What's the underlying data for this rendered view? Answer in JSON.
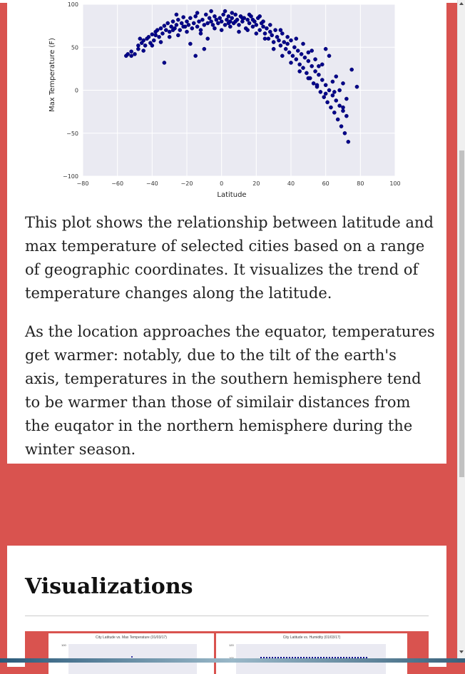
{
  "chart_data": {
    "type": "scatter",
    "xlabel": "Latitude",
    "ylabel": "Max Temperature (F)",
    "xlim": [
      -80,
      100
    ],
    "ylim": [
      -100,
      100
    ],
    "xticks": [
      -80,
      -60,
      -40,
      -20,
      0,
      20,
      40,
      60,
      80,
      100
    ],
    "yticks": [
      -100,
      -50,
      0,
      50,
      100
    ],
    "ytick_labels": [
      "−100",
      "−50",
      "0",
      "50",
      "100"
    ],
    "xtick_labels": [
      "−80",
      "−60",
      "−40",
      "−20",
      "0",
      "20",
      "40",
      "60",
      "80",
      "100"
    ],
    "grid": true,
    "marker_color": "#00008b",
    "background": "#eaeaf2",
    "series": [
      {
        "points": [
          [
            -55,
            40
          ],
          [
            -54,
            42
          ],
          [
            -52,
            45
          ],
          [
            -50,
            42
          ],
          [
            -48,
            48
          ],
          [
            -46,
            55
          ],
          [
            -45,
            58
          ],
          [
            -44,
            52
          ],
          [
            -43,
            60
          ],
          [
            -42,
            62
          ],
          [
            -41,
            55
          ],
          [
            -40,
            65
          ],
          [
            -39,
            58
          ],
          [
            -38,
            68
          ],
          [
            -37,
            70
          ],
          [
            -36,
            62
          ],
          [
            -35,
            72
          ],
          [
            -34,
            66
          ],
          [
            -33,
            75
          ],
          [
            -32,
            70
          ],
          [
            -31,
            78
          ],
          [
            -30,
            68
          ],
          [
            -29,
            74
          ],
          [
            -28,
            80
          ],
          [
            -27,
            72
          ],
          [
            -26,
            76
          ],
          [
            -25,
            82
          ],
          [
            -24,
            70
          ],
          [
            -23,
            78
          ],
          [
            -22,
            85
          ],
          [
            -21,
            74
          ],
          [
            -20,
            80
          ],
          [
            -19,
            76
          ],
          [
            -18,
            84
          ],
          [
            -17,
            72
          ],
          [
            -16,
            78
          ],
          [
            -15,
            86
          ],
          [
            -14,
            74
          ],
          [
            -13,
            80
          ],
          [
            -12,
            70
          ],
          [
            -11,
            82
          ],
          [
            -10,
            76
          ],
          [
            -9,
            88
          ],
          [
            -8,
            78
          ],
          [
            -7,
            84
          ],
          [
            -6,
            80
          ],
          [
            -5,
            76
          ],
          [
            -4,
            86
          ],
          [
            -3,
            82
          ],
          [
            -2,
            78
          ],
          [
            -1,
            84
          ],
          [
            0,
            80
          ],
          [
            1,
            88
          ],
          [
            2,
            76
          ],
          [
            3,
            82
          ],
          [
            4,
            86
          ],
          [
            5,
            80
          ],
          [
            6,
            84
          ],
          [
            7,
            78
          ],
          [
            8,
            88
          ],
          [
            9,
            82
          ],
          [
            10,
            76
          ],
          [
            11,
            86
          ],
          [
            12,
            80
          ],
          [
            13,
            84
          ],
          [
            14,
            72
          ],
          [
            15,
            82
          ],
          [
            16,
            78
          ],
          [
            17,
            86
          ],
          [
            18,
            74
          ],
          [
            19,
            80
          ],
          [
            20,
            76
          ],
          [
            21,
            84
          ],
          [
            22,
            70
          ],
          [
            23,
            78
          ],
          [
            24,
            74
          ],
          [
            25,
            66
          ],
          [
            26,
            72
          ],
          [
            27,
            60
          ],
          [
            28,
            68
          ],
          [
            29,
            64
          ],
          [
            30,
            56
          ],
          [
            31,
            70
          ],
          [
            32,
            62
          ],
          [
            33,
            58
          ],
          [
            34,
            52
          ],
          [
            35,
            66
          ],
          [
            36,
            56
          ],
          [
            37,
            48
          ],
          [
            38,
            54
          ],
          [
            39,
            44
          ],
          [
            40,
            58
          ],
          [
            41,
            40
          ],
          [
            42,
            50
          ],
          [
            43,
            36
          ],
          [
            44,
            46
          ],
          [
            45,
            30
          ],
          [
            46,
            42
          ],
          [
            47,
            26
          ],
          [
            48,
            38
          ],
          [
            49,
            20
          ],
          [
            50,
            34
          ],
          [
            51,
            14
          ],
          [
            52,
            28
          ],
          [
            53,
            8
          ],
          [
            54,
            22
          ],
          [
            55,
            4
          ],
          [
            56,
            18
          ],
          [
            57,
            -2
          ],
          [
            58,
            12
          ],
          [
            59,
            -8
          ],
          [
            60,
            6
          ],
          [
            61,
            -14
          ],
          [
            62,
            0
          ],
          [
            63,
            -20
          ],
          [
            64,
            -6
          ],
          [
            65,
            -26
          ],
          [
            66,
            -12
          ],
          [
            67,
            -34
          ],
          [
            68,
            -18
          ],
          [
            69,
            -42
          ],
          [
            70,
            -24
          ],
          [
            71,
            -50
          ],
          [
            72,
            -30
          ],
          [
            73,
            -60
          ],
          [
            -33,
            32
          ],
          [
            -40,
            52
          ],
          [
            -30,
            62
          ],
          [
            -18,
            54
          ],
          [
            -15,
            40
          ],
          [
            -10,
            48
          ],
          [
            -25,
            64
          ],
          [
            -35,
            56
          ],
          [
            -45,
            46
          ],
          [
            -20,
            68
          ],
          [
            -8,
            60
          ],
          [
            0,
            70
          ],
          [
            5,
            74
          ],
          [
            10,
            68
          ],
          [
            15,
            70
          ],
          [
            20,
            66
          ],
          [
            25,
            60
          ],
          [
            30,
            48
          ],
          [
            35,
            40
          ],
          [
            40,
            32
          ],
          [
            45,
            22
          ],
          [
            50,
            14
          ],
          [
            55,
            6
          ],
          [
            60,
            -4
          ],
          [
            65,
            -2
          ],
          [
            70,
            8
          ],
          [
            75,
            24
          ],
          [
            78,
            4
          ],
          [
            62,
            40
          ],
          [
            58,
            30
          ],
          [
            66,
            16
          ],
          [
            52,
            46
          ],
          [
            47,
            54
          ],
          [
            43,
            60
          ],
          [
            60,
            48
          ],
          [
            64,
            10
          ],
          [
            68,
            0
          ],
          [
            72,
            -10
          ],
          [
            70,
            -20
          ],
          [
            56,
            28
          ],
          [
            54,
            36
          ],
          [
            50,
            44
          ],
          [
            38,
            62
          ],
          [
            34,
            70
          ],
          [
            28,
            76
          ],
          [
            24,
            80
          ],
          [
            18,
            82
          ],
          [
            12,
            84
          ],
          [
            8,
            80
          ],
          [
            4,
            78
          ],
          [
            -4,
            72
          ],
          [
            -12,
            66
          ],
          [
            -22,
            74
          ],
          [
            -28,
            70
          ],
          [
            -38,
            64
          ],
          [
            -48,
            52
          ],
          [
            -52,
            40
          ],
          [
            -47,
            60
          ],
          [
            -26,
            88
          ],
          [
            -14,
            90
          ],
          [
            -6,
            92
          ],
          [
            2,
            92
          ],
          [
            6,
            90
          ],
          [
            16,
            88
          ],
          [
            22,
            86
          ]
        ]
      }
    ]
  },
  "text": {
    "paragraph_1": "This plot shows the relationship between latitude and max temperature of selected cities based on a range of geographic coordinates. It visualizes the trend of temperature changes along the latitude.",
    "paragraph_2": "As the location approaches the equator, temperatures get warmer: notably, due to the tilt of the earth's axis, temperatures in the southern hemisphere tend to be warmer than those of similair distances from the euqator in the northern hemisphere during the winter season.",
    "visualizations_heading": "Visualizations"
  },
  "thumbnails": [
    {
      "caption": "City Latitude vs. Max Temperature (01/03/17)",
      "tick": "100"
    },
    {
      "caption": "City Latitude vs. Humidity (01/03/17)",
      "tick_1": "120",
      "tick_2": "100"
    }
  ]
}
